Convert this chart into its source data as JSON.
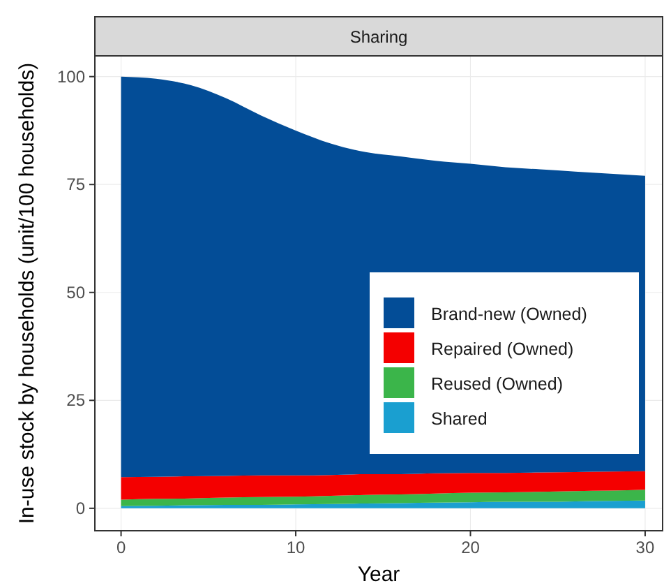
{
  "chart_data": {
    "type": "area",
    "stacked": true,
    "title": "Sharing",
    "xlabel": "Year",
    "ylabel": "In-use stock by households (unit/100 households)",
    "x": [
      0,
      2,
      4,
      6,
      8,
      10,
      12,
      14,
      16,
      18,
      20,
      22,
      24,
      26,
      28,
      30
    ],
    "series": [
      {
        "name": "Shared",
        "color": "#1a9fd0",
        "values": [
          0.5,
          0.6,
          0.7,
          0.8,
          0.8,
          0.9,
          1.0,
          1.1,
          1.2,
          1.3,
          1.4,
          1.5,
          1.5,
          1.6,
          1.7,
          1.8
        ]
      },
      {
        "name": "Reused (Owned)",
        "color": "#3bb54a",
        "values": [
          1.5,
          1.6,
          1.6,
          1.7,
          1.8,
          1.8,
          1.9,
          2.0,
          2.0,
          2.1,
          2.2,
          2.2,
          2.3,
          2.4,
          2.4,
          2.5
        ]
      },
      {
        "name": "Repaired (Owned)",
        "color": "#f40000",
        "values": [
          5.2,
          5.1,
          5.1,
          5.0,
          5.0,
          4.9,
          4.8,
          4.8,
          4.7,
          4.7,
          4.6,
          4.5,
          4.5,
          4.4,
          4.4,
          4.3
        ]
      },
      {
        "name": "Brand-new (Owned)",
        "color": "#034d97",
        "values": [
          92.8,
          92.2,
          90.6,
          87.5,
          83.4,
          79.9,
          76.8,
          74.6,
          73.6,
          72.4,
          71.6,
          70.8,
          70.2,
          69.6,
          69.0,
          68.4
        ]
      }
    ],
    "xlim": [
      -1.5,
      31
    ],
    "xticks": [
      0,
      10,
      20,
      30
    ],
    "ylim": [
      -5.2,
      104.8
    ],
    "yticks": [
      0,
      25,
      50,
      75,
      100
    ],
    "grid": true,
    "legend": "right"
  }
}
